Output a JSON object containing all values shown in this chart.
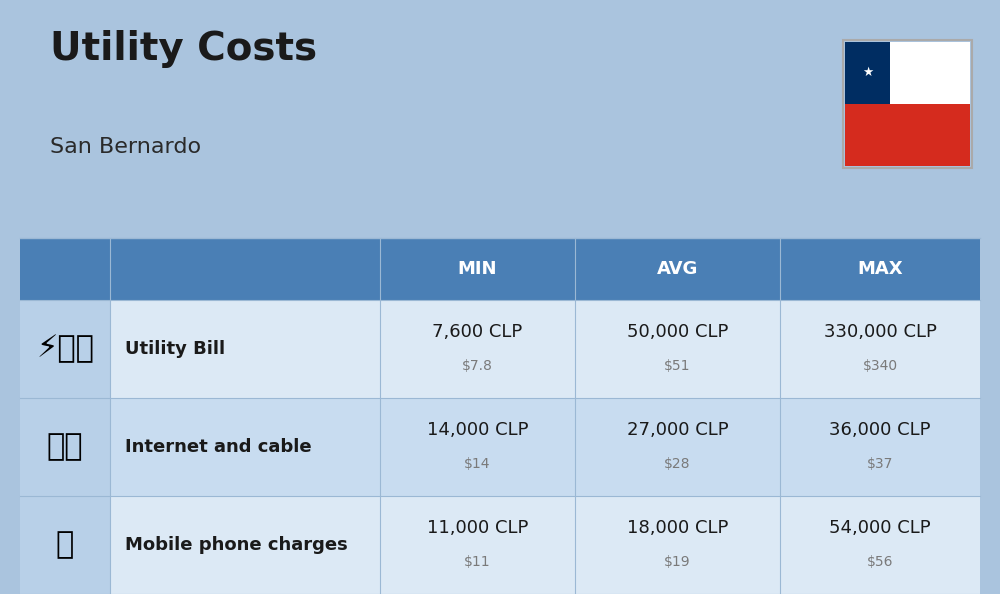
{
  "title": "Utility Costs",
  "subtitle": "San Bernardo",
  "background_color": "#aac4de",
  "header_bg_color": "#4a7fb5",
  "header_text_color": "#ffffff",
  "row_bg_color_1": "#dce9f5",
  "row_bg_color_2": "#c8dcf0",
  "icon_bg_color": "#b8d0e8",
  "col_header_labels": [
    "MIN",
    "AVG",
    "MAX"
  ],
  "rows": [
    {
      "label": "Utility Bill",
      "min_clp": "7,600 CLP",
      "min_usd": "$7.8",
      "avg_clp": "50,000 CLP",
      "avg_usd": "$51",
      "max_clp": "330,000 CLP",
      "max_usd": "$340"
    },
    {
      "label": "Internet and cable",
      "min_clp": "14,000 CLP",
      "min_usd": "$14",
      "avg_clp": "27,000 CLP",
      "avg_usd": "$28",
      "max_clp": "36,000 CLP",
      "max_usd": "$37"
    },
    {
      "label": "Mobile phone charges",
      "min_clp": "11,000 CLP",
      "min_usd": "$11",
      "avg_clp": "18,000 CLP",
      "avg_usd": "$19",
      "max_clp": "54,000 CLP",
      "max_usd": "$56"
    }
  ],
  "title_fontsize": 28,
  "subtitle_fontsize": 16,
  "header_fontsize": 13,
  "label_fontsize": 13,
  "value_fontsize": 13,
  "usd_fontsize": 10,
  "flag_white": "#ffffff",
  "flag_red": "#d52b1e",
  "flag_blue": "#002d62",
  "divider_color": "#9bb8d4",
  "label_color": "#1a1a1a",
  "usd_color": "#7a7a7a",
  "title_color": "#1a1a1a",
  "subtitle_color": "#2a2a2a"
}
